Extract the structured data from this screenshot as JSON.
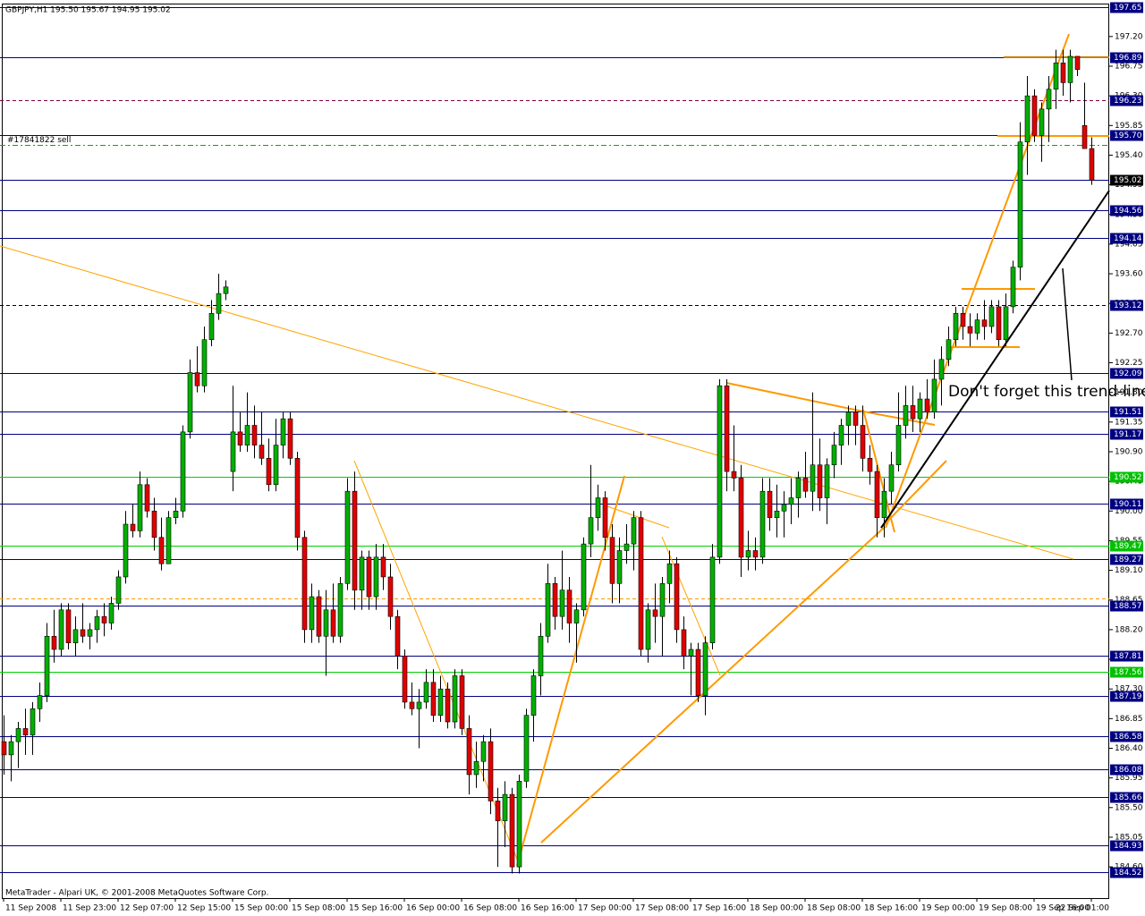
{
  "chart_data": {
    "type": "candlestick",
    "title": "GBPJPY,H1  195.50 195.67 194.95 195.02",
    "footer": "MetaTrader - Alpari UK, © 2001-2008 MetaQuotes Software Corp.",
    "annotation": "Don't forget this trend-line!",
    "up_color": "#00b000",
    "down_color": "#e00000",
    "ylim": [
      184.14,
      197.7
    ],
    "yticks": [
      {
        "value": 184.6,
        "label": "184.60"
      },
      185.05,
      {
        "value": 185.5,
        "label": "185.50"
      },
      185.95,
      {
        "value": 186.4,
        "label": "186.40"
      },
      186.85,
      {
        "value": 187.3,
        "label": "187.30"
      },
      187.75,
      {
        "value": 188.2,
        "label": "188.20"
      },
      188.65,
      {
        "value": 189.1,
        "label": "189.10"
      },
      189.55,
      {
        "value": 190.0,
        "label": "190.00"
      },
      190.45,
      {
        "value": 190.9,
        "label": "190.90"
      },
      191.35,
      {
        "value": 191.8,
        "label": "191.80"
      },
      192.25,
      {
        "value": 192.7,
        "label": "192.70"
      },
      193.15,
      {
        "value": 193.6,
        "label": "193.60"
      },
      194.05,
      {
        "value": 194.5,
        "label": "194.50"
      },
      194.95,
      {
        "value": 195.4,
        "label": "195.40"
      },
      195.85,
      {
        "value": 196.3,
        "label": "196.30"
      },
      196.75,
      {
        "value": 197.2,
        "label": "197.20"
      }
    ],
    "categories": [
      "11 Sep 2008",
      null,
      null,
      null,
      null,
      null,
      null,
      null,
      "11 Sep 23:00",
      null,
      null,
      null,
      null,
      null,
      null,
      null,
      "12 Sep 07:00",
      null,
      null,
      null,
      null,
      null,
      null,
      null,
      "12 Sep 15:00",
      null,
      null,
      null,
      null,
      null,
      null,
      null,
      "15 Sep 00:00",
      null,
      null,
      null,
      null,
      null,
      null,
      null,
      "15 Sep 08:00",
      null,
      null,
      null,
      null,
      null,
      null,
      null,
      "15 Sep 16:00",
      null,
      null,
      null,
      null,
      null,
      null,
      null,
      "16 Sep 00:00",
      null,
      null,
      null,
      null,
      null,
      null,
      null,
      "16 Sep 08:00",
      null,
      null,
      null,
      null,
      null,
      null,
      null,
      "16 Sep 16:00",
      null,
      null,
      null,
      null,
      null,
      null,
      null,
      "17 Sep 00:00",
      null,
      null,
      null,
      null,
      null,
      null,
      null,
      "17 Sep 08:00",
      null,
      null,
      null,
      null,
      null,
      null,
      null,
      "17 Sep 16:00",
      null,
      null,
      null,
      null,
      null,
      null,
      null,
      "18 Sep 00:00",
      null,
      null,
      null,
      null,
      null,
      null,
      null,
      "18 Sep 08:00",
      null,
      null,
      null,
      null,
      null,
      null,
      null,
      "18 Sep 16:00",
      null,
      null,
      null,
      null,
      null,
      null,
      null,
      "19 Sep 00:00",
      null,
      null,
      null,
      null,
      null,
      null,
      null,
      "19 Sep 08:00",
      null,
      null,
      null,
      null,
      null,
      null,
      null,
      "19 Sep 16:00",
      null,
      null,
      null,
      null,
      null,
      null,
      null,
      "22 Sep 01:00"
    ],
    "ohlc": [
      [
        186.5,
        186.9,
        186.0,
        186.3
      ],
      [
        186.3,
        186.6,
        185.9,
        186.5
      ],
      [
        186.5,
        186.8,
        186.1,
        186.7
      ],
      [
        186.7,
        187.0,
        186.3,
        186.6
      ],
      [
        186.6,
        187.1,
        186.3,
        187.0
      ],
      [
        187.0,
        187.4,
        186.8,
        187.2
      ],
      [
        187.2,
        188.3,
        187.1,
        188.1
      ],
      [
        188.1,
        188.5,
        187.7,
        187.9
      ],
      [
        187.9,
        188.6,
        187.8,
        188.5
      ],
      [
        188.5,
        188.6,
        187.9,
        188.0
      ],
      [
        188.0,
        188.4,
        187.8,
        188.2
      ],
      [
        188.2,
        188.6,
        188.0,
        188.1
      ],
      [
        188.1,
        188.3,
        187.9,
        188.2
      ],
      [
        188.2,
        188.5,
        188.0,
        188.4
      ],
      [
        188.4,
        188.6,
        188.1,
        188.3
      ],
      [
        188.3,
        188.7,
        188.2,
        188.6
      ],
      [
        188.6,
        189.1,
        188.5,
        189.0
      ],
      [
        189.0,
        190.0,
        188.9,
        189.8
      ],
      [
        189.8,
        190.1,
        189.6,
        189.7
      ],
      [
        189.7,
        190.6,
        189.6,
        190.4
      ],
      [
        190.4,
        190.5,
        189.9,
        190.0
      ],
      [
        190.0,
        190.2,
        189.4,
        189.6
      ],
      [
        189.6,
        189.9,
        189.1,
        189.2
      ],
      [
        189.2,
        190.0,
        189.2,
        189.9
      ],
      [
        189.9,
        190.2,
        189.8,
        190.0
      ],
      [
        190.0,
        191.3,
        189.9,
        191.2
      ],
      [
        191.2,
        192.3,
        191.1,
        192.1
      ],
      [
        192.1,
        192.5,
        191.8,
        191.9
      ],
      [
        191.9,
        192.8,
        191.8,
        192.6
      ],
      [
        192.6,
        193.2,
        192.5,
        193.0
      ],
      [
        193.0,
        193.6,
        192.9,
        193.3
      ],
      [
        193.3,
        193.5,
        193.2,
        193.4
      ],
      [
        190.6,
        191.9,
        190.3,
        191.2
      ],
      [
        191.2,
        191.5,
        190.9,
        191.0
      ],
      [
        191.0,
        191.8,
        190.9,
        191.3
      ],
      [
        191.3,
        191.6,
        190.8,
        191.0
      ],
      [
        191.0,
        191.5,
        190.7,
        190.8
      ],
      [
        190.8,
        191.1,
        190.3,
        190.4
      ],
      [
        190.4,
        191.4,
        190.3,
        191.0
      ],
      [
        191.0,
        191.5,
        190.8,
        191.4
      ],
      [
        191.4,
        191.5,
        190.7,
        190.8
      ],
      [
        190.8,
        190.9,
        189.4,
        189.6
      ],
      [
        189.6,
        189.7,
        188.0,
        188.2
      ],
      [
        188.2,
        188.9,
        188.0,
        188.7
      ],
      [
        188.7,
        188.8,
        188.0,
        188.1
      ],
      [
        188.1,
        188.8,
        187.5,
        188.5
      ],
      [
        188.5,
        188.9,
        188.0,
        188.1
      ],
      [
        188.1,
        189.0,
        188.0,
        188.9
      ],
      [
        188.9,
        190.5,
        188.8,
        190.3
      ],
      [
        190.3,
        190.6,
        188.5,
        188.8
      ],
      [
        188.8,
        189.4,
        188.5,
        189.3
      ],
      [
        189.3,
        189.4,
        188.5,
        188.7
      ],
      [
        188.7,
        189.5,
        188.5,
        189.3
      ],
      [
        189.3,
        189.5,
        188.8,
        189.0
      ],
      [
        189.0,
        189.2,
        188.2,
        188.4
      ],
      [
        188.4,
        188.5,
        187.6,
        187.8
      ],
      [
        187.8,
        187.9,
        187.0,
        187.1
      ],
      [
        187.1,
        187.4,
        186.9,
        187.0
      ],
      [
        187.0,
        187.3,
        186.4,
        187.1
      ],
      [
        187.1,
        187.6,
        187.0,
        187.4
      ],
      [
        187.4,
        187.6,
        186.8,
        186.9
      ],
      [
        186.9,
        187.5,
        186.8,
        187.3
      ],
      [
        187.3,
        187.4,
        186.7,
        186.8
      ],
      [
        186.8,
        187.6,
        186.7,
        187.5
      ],
      [
        187.5,
        187.6,
        186.6,
        186.7
      ],
      [
        186.7,
        186.9,
        185.7,
        186.0
      ],
      [
        186.0,
        186.5,
        185.8,
        186.2
      ],
      [
        186.2,
        186.6,
        185.9,
        186.5
      ],
      [
        186.5,
        186.7,
        185.4,
        185.6
      ],
      [
        185.6,
        185.8,
        184.6,
        185.3
      ],
      [
        185.3,
        185.9,
        184.9,
        185.7
      ],
      [
        185.7,
        185.8,
        184.5,
        184.6
      ],
      [
        184.6,
        186.0,
        184.5,
        185.9
      ],
      [
        185.9,
        187.0,
        185.8,
        186.9
      ],
      [
        186.9,
        187.6,
        186.5,
        187.5
      ],
      [
        187.5,
        188.3,
        187.2,
        188.1
      ],
      [
        188.1,
        189.2,
        188.0,
        188.9
      ],
      [
        188.9,
        189.0,
        188.2,
        188.4
      ],
      [
        188.4,
        189.4,
        188.2,
        188.8
      ],
      [
        188.8,
        189.0,
        188.0,
        188.3
      ],
      [
        188.3,
        188.6,
        187.7,
        188.5
      ],
      [
        188.5,
        189.6,
        188.4,
        189.5
      ],
      [
        189.5,
        190.7,
        189.3,
        189.9
      ],
      [
        189.9,
        190.4,
        189.7,
        190.2
      ],
      [
        190.2,
        190.3,
        189.4,
        189.6
      ],
      [
        189.6,
        189.8,
        188.6,
        188.9
      ],
      [
        188.9,
        189.6,
        188.6,
        189.4
      ],
      [
        189.4,
        189.8,
        189.2,
        189.5
      ],
      [
        189.5,
        190.0,
        189.1,
        189.9
      ],
      [
        189.9,
        190.0,
        187.8,
        187.9
      ],
      [
        187.9,
        188.6,
        187.7,
        188.5
      ],
      [
        188.5,
        188.9,
        188.0,
        188.4
      ],
      [
        188.4,
        189.0,
        187.8,
        188.9
      ],
      [
        188.9,
        189.4,
        188.6,
        189.2
      ],
      [
        189.2,
        189.3,
        188.0,
        188.2
      ],
      [
        188.2,
        188.4,
        187.6,
        187.8
      ],
      [
        187.8,
        188.0,
        187.2,
        187.9
      ],
      [
        187.9,
        188.0,
        187.1,
        187.2
      ],
      [
        187.2,
        188.1,
        186.9,
        188.0
      ],
      [
        188.0,
        189.5,
        187.9,
        189.3
      ],
      [
        189.3,
        192.0,
        189.2,
        191.9
      ],
      [
        191.9,
        192.0,
        190.3,
        190.6
      ],
      [
        190.6,
        191.3,
        190.3,
        190.5
      ],
      [
        190.5,
        190.7,
        189.0,
        189.3
      ],
      [
        189.3,
        189.7,
        189.1,
        189.4
      ],
      [
        189.4,
        189.6,
        189.1,
        189.3
      ],
      [
        189.3,
        190.5,
        189.2,
        190.3
      ],
      [
        190.3,
        190.5,
        189.7,
        189.9
      ],
      [
        189.9,
        190.4,
        189.6,
        190.0
      ],
      [
        190.0,
        190.3,
        189.6,
        190.1
      ],
      [
        190.1,
        190.5,
        189.8,
        190.2
      ],
      [
        190.2,
        190.6,
        189.9,
        190.5
      ],
      [
        190.5,
        190.9,
        190.2,
        190.3
      ],
      [
        190.3,
        191.8,
        190.0,
        190.7
      ],
      [
        190.7,
        191.1,
        190.0,
        190.2
      ],
      [
        190.2,
        190.8,
        189.8,
        190.7
      ],
      [
        190.7,
        191.2,
        190.5,
        191.0
      ],
      [
        191.0,
        191.4,
        190.7,
        191.3
      ],
      [
        191.3,
        191.6,
        191.0,
        191.5
      ],
      [
        191.5,
        191.6,
        191.0,
        191.3
      ],
      [
        191.3,
        191.6,
        190.6,
        190.8
      ],
      [
        190.8,
        191.0,
        190.4,
        190.6
      ],
      [
        190.6,
        190.7,
        189.6,
        189.9
      ],
      [
        189.9,
        190.5,
        189.6,
        190.3
      ],
      [
        190.3,
        190.9,
        190.1,
        190.7
      ],
      [
        190.7,
        191.8,
        190.6,
        191.3
      ],
      [
        191.3,
        191.9,
        191.1,
        191.6
      ],
      [
        191.6,
        191.9,
        191.2,
        191.4
      ],
      [
        191.4,
        191.8,
        191.2,
        191.7
      ],
      [
        191.7,
        192.0,
        191.4,
        191.5
      ],
      [
        191.5,
        192.3,
        191.4,
        192.0
      ],
      [
        192.0,
        192.5,
        191.6,
        192.3
      ],
      [
        192.3,
        192.8,
        192.2,
        192.6
      ],
      [
        192.6,
        193.1,
        192.5,
        193.0
      ],
      [
        193.0,
        193.1,
        192.6,
        192.8
      ],
      [
        192.8,
        193.0,
        192.5,
        192.7
      ],
      [
        192.7,
        193.0,
        192.6,
        192.9
      ],
      [
        192.9,
        193.2,
        192.6,
        192.8
      ],
      [
        192.8,
        193.2,
        192.7,
        193.1
      ],
      [
        193.1,
        193.2,
        192.5,
        192.6
      ],
      [
        192.6,
        193.3,
        192.5,
        193.1
      ],
      [
        193.1,
        193.8,
        193.0,
        193.7
      ],
      [
        193.7,
        195.9,
        193.5,
        195.6
      ],
      [
        195.6,
        196.6,
        195.1,
        196.3
      ],
      [
        196.3,
        196.4,
        195.6,
        195.7
      ],
      [
        195.7,
        196.2,
        195.3,
        196.1
      ],
      [
        196.1,
        196.6,
        195.6,
        196.4
      ],
      [
        196.4,
        197.0,
        196.1,
        196.8
      ],
      [
        196.8,
        197.0,
        196.3,
        196.5
      ],
      [
        196.5,
        197.0,
        196.2,
        196.9
      ],
      [
        196.9,
        196.9,
        196.6,
        196.7
      ],
      [
        195.85,
        196.5,
        195.5,
        195.5
      ],
      [
        195.5,
        195.67,
        194.95,
        195.02
      ]
    ],
    "levels": [
      {
        "value": 197.65,
        "label": "197.65",
        "color": "#000080",
        "style": "solid",
        "label_bg": "#000080"
      },
      {
        "value": 196.89,
        "label": "196.89",
        "color": "#000080",
        "style": "solid",
        "label_bg": "#000080"
      },
      {
        "value": 196.23,
        "label": "196.23",
        "color": "#800040",
        "style": "dashed",
        "label_bg": "#000080"
      },
      {
        "value": 195.7,
        "label": "195.70",
        "color": "#000080",
        "style": "solid",
        "label_bg": "#000080"
      },
      {
        "value": 195.55,
        "text": "#17841822 sell",
        "color": "#00b000",
        "style": "dashdot"
      },
      {
        "value": 195.02,
        "label": "195.02",
        "color": "#000080",
        "style": "solid",
        "label_bg": "#000000"
      },
      {
        "value": 194.56,
        "label": "194.56",
        "color": "#000080",
        "style": "solid",
        "label_bg": "#000080"
      },
      {
        "value": 194.14,
        "label": "194.14",
        "color": "#000080",
        "style": "solid",
        "label_bg": "#000080"
      },
      {
        "value": 193.12,
        "label": "193.12",
        "color": "#000000",
        "style": "dashed",
        "label_bg": "#000080"
      },
      {
        "value": 192.09,
        "label": "192.09",
        "color": "#000080",
        "style": "solid",
        "label_bg": "#000080"
      },
      {
        "value": 191.51,
        "label": "191.51",
        "color": "#000080",
        "style": "solid",
        "label_bg": "#000080"
      },
      {
        "value": 191.17,
        "label": "191.17",
        "color": "#000080",
        "style": "solid",
        "label_bg": "#000080"
      },
      {
        "value": 190.52,
        "label": "190.52",
        "color": "#00d000",
        "style": "solid",
        "label_bg": "#00c000"
      },
      {
        "value": 190.11,
        "label": "190.11",
        "color": "#000080",
        "style": "solid",
        "label_bg": "#000080"
      },
      {
        "value": 189.47,
        "label": "189.47",
        "color": "#00d000",
        "style": "solid",
        "label_bg": "#00c000"
      },
      {
        "value": 189.27,
        "label": "189.27",
        "color": "#000080",
        "style": "solid",
        "label_bg": "#000080"
      },
      {
        "value": 188.67,
        "color": "#ff9900",
        "style": "dashed"
      },
      {
        "value": 188.57,
        "label": "188.57",
        "color": "#000080",
        "style": "solid",
        "label_bg": "#000080"
      },
      {
        "value": 187.81,
        "label": "187.81",
        "color": "#000080",
        "style": "solid",
        "label_bg": "#000080"
      },
      {
        "value": 187.56,
        "label": "187.56",
        "color": "#00d000",
        "style": "solid",
        "label_bg": "#00c000"
      },
      {
        "value": 187.19,
        "label": "187.19",
        "color": "#000080",
        "style": "solid",
        "label_bg": "#000080"
      },
      {
        "value": 186.58,
        "label": "186.58",
        "color": "#000080",
        "style": "solid",
        "label_bg": "#000080"
      },
      {
        "value": 186.08,
        "label": "186.08",
        "color": "#000080",
        "style": "solid",
        "label_bg": "#000080"
      },
      {
        "value": 185.66,
        "label": "185.66",
        "color": "#000080",
        "style": "solid",
        "label_bg": "#000080"
      },
      {
        "value": 184.93,
        "label": "184.93",
        "color": "#000080",
        "style": "solid",
        "label_bg": "#000080"
      },
      {
        "value": 184.52,
        "label": "184.52",
        "color": "#000080",
        "style": "solid",
        "label_bg": "#000080"
      }
    ]
  }
}
